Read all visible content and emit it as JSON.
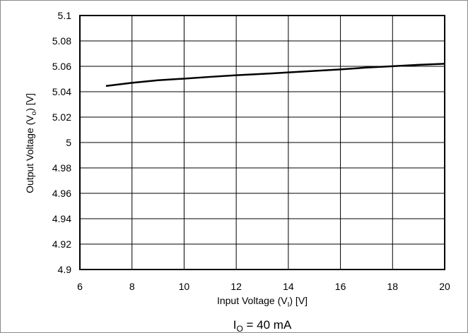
{
  "chart_data": {
    "type": "line",
    "xlabel": {
      "main": "Input Voltage (V",
      "sub": "I",
      "tail": ") [V]"
    },
    "ylabel": {
      "main": "Output Voltage (V",
      "sub": "o",
      "tail": ") [V]"
    },
    "caption": {
      "main": "I",
      "sub": "O",
      "tail": " = 40 mA"
    },
    "xlim": [
      6,
      20
    ],
    "ylim": [
      4.9,
      5.1
    ],
    "xticks": [
      6,
      8,
      10,
      12,
      14,
      16,
      18,
      20
    ],
    "yticks": [
      4.9,
      4.92,
      4.94,
      4.96,
      4.98,
      5,
      5.02,
      5.04,
      5.06,
      5.08,
      5.1
    ],
    "x_tick_labels": [
      "6",
      "8",
      "10",
      "12",
      "14",
      "16",
      "18",
      "20"
    ],
    "y_tick_labels": [
      "4.9",
      "4.92",
      "4.94",
      "4.96",
      "4.98",
      "5",
      "5.02",
      "5.04",
      "5.06",
      "5.08",
      "5.1"
    ],
    "grid": true,
    "series": [
      {
        "x": [
          7,
          8,
          9,
          10,
          11,
          12,
          13,
          14,
          15,
          16,
          17,
          18,
          19,
          20
        ],
        "values": [
          5.0445,
          5.047,
          5.049,
          5.0503,
          5.0517,
          5.053,
          5.054,
          5.0552,
          5.0564,
          5.0576,
          5.059,
          5.0601,
          5.0612,
          5.062
        ]
      }
    ],
    "line_color": "#000000",
    "grid_color": "#000000"
  }
}
